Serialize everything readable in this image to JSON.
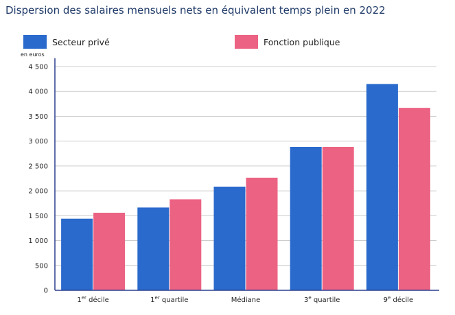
{
  "colors": {
    "private": "#2a6acc",
    "public": "#ec6282",
    "axis": "#2b3f8e",
    "grid": "#cccccc"
  },
  "chart_data": {
    "type": "bar",
    "title": "Dispersion des salaires mensuels nets en équivalent temps plein en 2022",
    "ylabel": "en euros",
    "xlabel": "",
    "ylim": [
      0,
      4500
    ],
    "yticks": [
      "0",
      "500",
      "1 000",
      "1 500",
      "2 000",
      "2 500",
      "3 000",
      "3 500",
      "4 000",
      "4 500"
    ],
    "grid": true,
    "legend_position": "top",
    "categories": [
      {
        "base": "1",
        "sup": "er",
        "rest": " décile"
      },
      {
        "base": "1",
        "sup": "er",
        "rest": " quartile"
      },
      {
        "base": "Médiane",
        "sup": "",
        "rest": ""
      },
      {
        "base": "3",
        "sup": "e",
        "rest": " quartile"
      },
      {
        "base": "9",
        "sup": "e",
        "rest": " décile"
      }
    ],
    "series": [
      {
        "name": "Secteur privé",
        "values": [
          1440,
          1665,
          2085,
          2885,
          4150
        ]
      },
      {
        "name": "Fonction publique",
        "values": [
          1560,
          1830,
          2265,
          2885,
          3670
        ]
      }
    ]
  }
}
